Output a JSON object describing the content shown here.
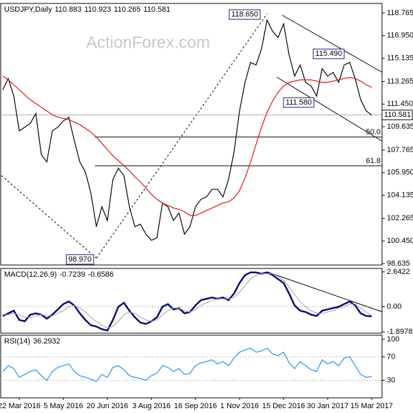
{
  "chart_data": [
    {
      "type": "line",
      "label": "USDJPY,Daily",
      "label_values": [
        110.883,
        110.923,
        110.265,
        110.581
      ],
      "watermark": "ActionForex.com",
      "ylim": [
        98.52,
        119.54
      ],
      "yticks": [
        {
          "value": 98.635,
          "label": "98.635"
        },
        {
          "value": 100.45,
          "label": "100.450"
        },
        {
          "value": 102.265,
          "label": "102.265"
        },
        {
          "value": 104.135,
          "label": "104.135"
        },
        {
          "value": 105.95,
          "label": "105.950"
        },
        {
          "value": 107.765,
          "label": "107.765"
        },
        {
          "value": 109.635,
          "label": "109.635"
        },
        {
          "value": 111.45,
          "label": "111.450"
        },
        {
          "value": 113.265,
          "label": "113.265"
        },
        {
          "value": 115.135,
          "label": "115.135"
        },
        {
          "value": 116.95,
          "label": "116.950"
        },
        {
          "value": 118.765,
          "label": "118.765"
        }
      ],
      "last": 110.581,
      "annotations": [
        {
          "value": 118.65,
          "label": "118.650"
        },
        {
          "value": 115.49,
          "label": "115.490"
        },
        {
          "value": 111.58,
          "label": "111.580"
        },
        {
          "value": 98.97,
          "label": "98.970"
        }
      ],
      "levels": [
        {
          "value": 108.81,
          "label": "50.0"
        },
        {
          "value": 106.49,
          "label": "61.8"
        }
      ],
      "series": [
        {
          "color": "#000000",
          "values": [
            112.6,
            113.5,
            112.1,
            109.3,
            109.6,
            109.9,
            110.7,
            107.4,
            106.8,
            109.3,
            109.6,
            110.1,
            110.4,
            108.5,
            106.8,
            106.0,
            104.3,
            101.6,
            103.2,
            102.1,
            105.4,
            106.3,
            105.7,
            103.2,
            101.6,
            101.8,
            101.0,
            100.5,
            100.7,
            103.5,
            103.2,
            102.1,
            102.7,
            101.0,
            101.6,
            103.2,
            103.8,
            104.0,
            104.6,
            104.6,
            104.0,
            105.4,
            107.6,
            110.9,
            113.2,
            114.8,
            114.6,
            115.9,
            118.2,
            117.3,
            116.8,
            117.9,
            115.4,
            113.7,
            114.6,
            113.2,
            112.9,
            112.1,
            114.3,
            113.7,
            114.0,
            113.2,
            114.6,
            114.8,
            113.5,
            111.8,
            110.9,
            110.581
          ]
        },
        {
          "color": "#e81010",
          "values": [
            113.7,
            113.4,
            113.0,
            112.6,
            112.2,
            111.8,
            111.5,
            111.2,
            110.9,
            110.6,
            110.4,
            110.3,
            110.2,
            110.0,
            109.8,
            109.5,
            109.2,
            108.8,
            108.3,
            107.8,
            107.3,
            106.9,
            106.5,
            106.1,
            105.6,
            105.2,
            104.7,
            104.2,
            103.8,
            103.5,
            103.3,
            103.1,
            103.0,
            102.8,
            102.5,
            102.5,
            102.7,
            102.9,
            103.1,
            103.3,
            103.5,
            103.6,
            103.9,
            104.5,
            105.5,
            106.8,
            108.2,
            109.6,
            110.8,
            111.7,
            112.4,
            112.9,
            113.2,
            113.3,
            113.4,
            113.4,
            113.4,
            113.3,
            113.2,
            113.2,
            113.3,
            113.4,
            113.5,
            113.6,
            113.5,
            113.3,
            113.0,
            112.8
          ]
        }
      ]
    },
    {
      "type": "line",
      "label": "MACD(12,26,9)",
      "label_values": [
        -0.7239,
        -0.6586
      ],
      "ylim": [
        -2.0,
        2.9
      ],
      "grid": true,
      "yticks": [
        2.6422,
        {
          "value": 0,
          "label": "0.00"
        },
        -1.8978
      ],
      "series": [
        {
          "color": "#0a0a7a",
          "width": 2.5,
          "values": [
            -0.7,
            -0.5,
            -0.3,
            -1.0,
            -1.1,
            -0.6,
            -0.5,
            -0.6,
            -0.9,
            -0.6,
            -0.2,
            0.2,
            0.4,
            0.1,
            -0.5,
            -1.0,
            -1.4,
            -1.5,
            -1.7,
            -1.8,
            -1.0,
            0.0,
            0.3,
            -0.3,
            -0.8,
            -1.2,
            -1.3,
            -1.1,
            -0.8,
            0.0,
            0.2,
            -0.2,
            -0.1,
            -0.5,
            -0.4,
            0.1,
            0.5,
            0.6,
            0.7,
            0.6,
            0.7,
            0.5,
            1.0,
            1.8,
            2.4,
            2.6,
            2.6,
            2.5,
            2.6,
            2.4,
            2.1,
            1.8,
            1.0,
            0.1,
            -0.3,
            -0.4,
            -0.6,
            -0.7,
            -0.3,
            -0.2,
            -0.1,
            0.0,
            0.2,
            0.4,
            0.1,
            -0.5,
            -0.7,
            -0.7239
          ]
        },
        {
          "color": "#a0a0a0",
          "width": 1,
          "values": [
            -0.6,
            -0.6,
            -0.5,
            -0.6,
            -0.8,
            -0.8,
            -0.7,
            -0.6,
            -0.7,
            -0.7,
            -0.5,
            -0.3,
            0.0,
            0.1,
            -0.1,
            -0.4,
            -0.8,
            -1.1,
            -1.4,
            -1.6,
            -1.5,
            -1.1,
            -0.6,
            -0.4,
            -0.5,
            -0.8,
            -1.0,
            -1.1,
            -1.0,
            -0.6,
            -0.3,
            -0.1,
            -0.1,
            -0.3,
            -0.4,
            -0.2,
            0.1,
            0.3,
            0.5,
            0.6,
            0.6,
            0.6,
            0.7,
            1.1,
            1.6,
            2.1,
            2.4,
            2.5,
            2.5,
            2.5,
            2.3,
            2.0,
            1.5,
            0.9,
            0.4,
            0.0,
            -0.3,
            -0.5,
            -0.5,
            -0.4,
            -0.3,
            -0.1,
            0.0,
            0.2,
            0.2,
            -0.1,
            -0.4,
            -0.6586
          ]
        }
      ]
    },
    {
      "type": "line",
      "label": "RSI(14)",
      "label_values": [
        36.2932
      ],
      "ylim": [
        0,
        107
      ],
      "grid": true,
      "yticks": [
        100,
        70,
        30
      ],
      "categories": [
        null,
        null,
        null,
        "22 Mar 2016",
        null,
        null,
        null,
        null,
        null,
        null,
        null,
        "5 May 2016",
        null,
        null,
        null,
        null,
        null,
        null,
        null,
        "20 Jun 2016",
        null,
        null,
        null,
        null,
        null,
        null,
        null,
        "3 Aug 2016",
        null,
        null,
        null,
        null,
        null,
        null,
        null,
        "16 Sep 2016",
        null,
        null,
        null,
        null,
        null,
        null,
        null,
        "1 Nov 2016",
        null,
        null,
        null,
        null,
        null,
        null,
        null,
        "15 Dec 2016",
        null,
        null,
        null,
        null,
        null,
        null,
        null,
        "30 Jan 2017",
        null,
        null,
        null,
        null,
        null,
        null,
        null,
        "15 Mar 2017"
      ],
      "series": [
        {
          "color": "#1e90ff",
          "values": [
            45,
            55,
            50,
            35,
            40,
            45,
            48,
            38,
            30,
            45,
            52,
            55,
            58,
            45,
            38,
            35,
            32,
            28,
            40,
            35,
            52,
            55,
            48,
            38,
            35,
            33,
            30,
            38,
            42,
            55,
            52,
            45,
            50,
            40,
            42,
            55,
            60,
            62,
            65,
            58,
            62,
            55,
            68,
            78,
            82,
            85,
            78,
            80,
            85,
            75,
            72,
            78,
            60,
            50,
            62,
            55,
            48,
            45,
            65,
            58,
            62,
            55,
            68,
            70,
            55,
            40,
            35,
            36.2932
          ]
        }
      ]
    }
  ]
}
